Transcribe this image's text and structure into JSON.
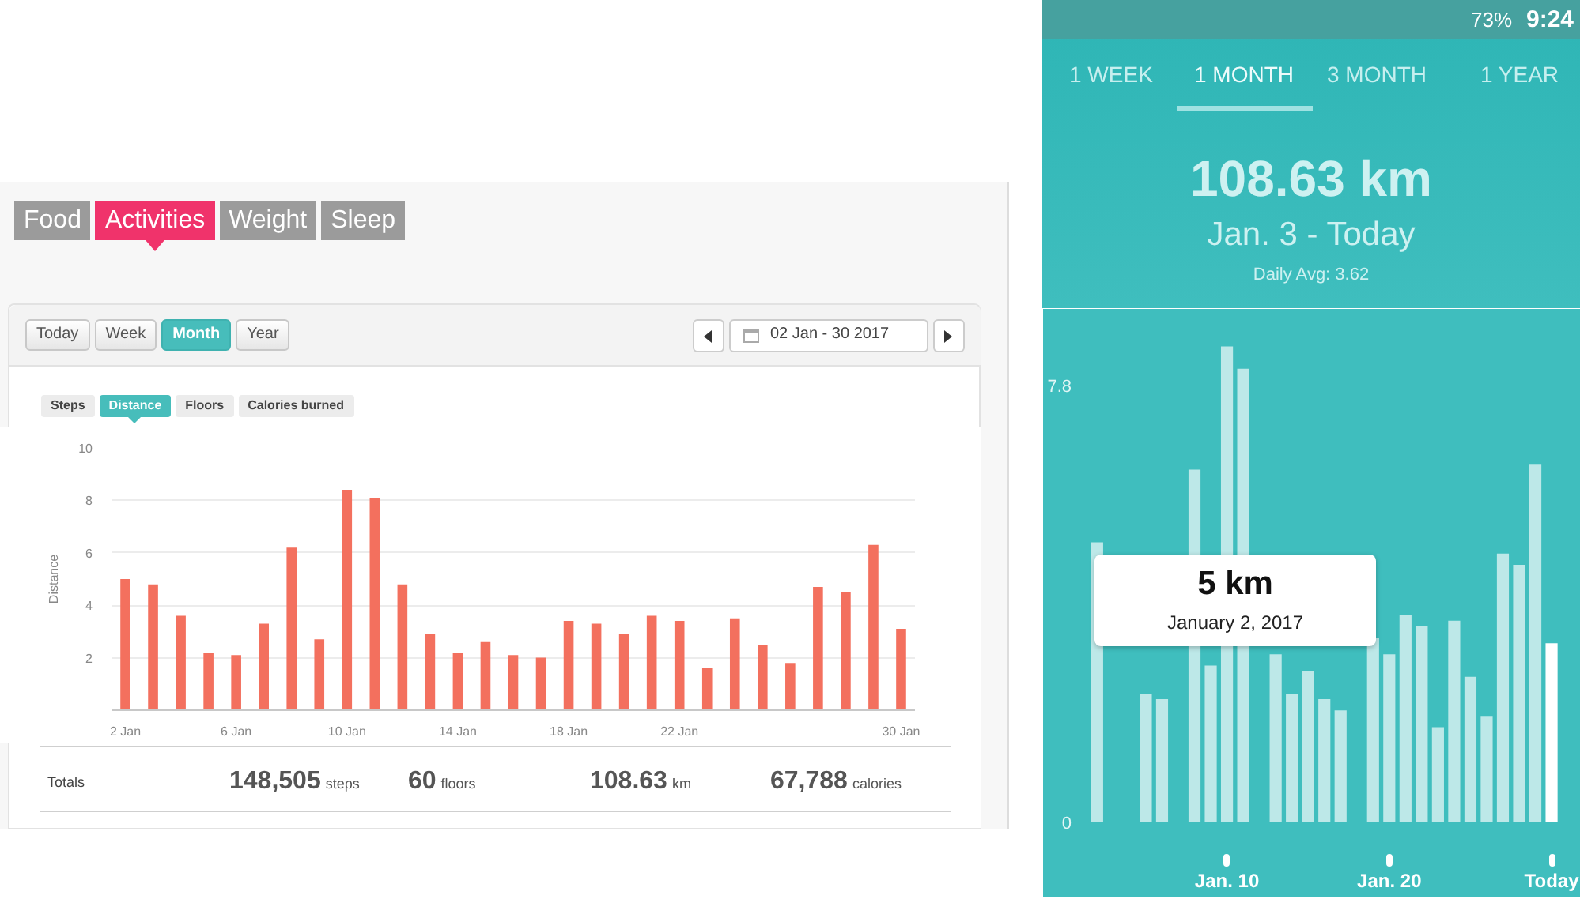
{
  "chart_data": [
    {
      "type": "bar",
      "categories": [
        "2 Jan",
        null,
        null,
        null,
        "6 Jan",
        null,
        null,
        null,
        "10 Jan",
        null,
        null,
        null,
        "14 Jan",
        null,
        null,
        null,
        "18 Jan",
        null,
        null,
        null,
        "22 Jan",
        null,
        null,
        null,
        null,
        null,
        null,
        null,
        "30 Jan"
      ],
      "values": [
        5.0,
        4.8,
        3.6,
        2.2,
        2.1,
        3.3,
        6.2,
        2.7,
        8.4,
        8.1,
        4.8,
        2.9,
        2.2,
        2.6,
        2.1,
        2.0,
        3.4,
        3.3,
        2.9,
        3.6,
        3.4,
        1.6,
        3.5,
        2.5,
        1.8,
        4.7,
        4.5,
        6.3,
        3.1
      ],
      "color": "#f3705e",
      "ylabel": "Distance",
      "ylim": [
        0,
        10
      ],
      "yticks": [
        2,
        4,
        6,
        8,
        10
      ],
      "grid": "y",
      "annotations": [
        "Food",
        "Activities",
        "Weight",
        "Sleep",
        "Today",
        "Week",
        "Month",
        "Year",
        "02 Jan - 30 2017",
        "Steps",
        "Distance",
        "Floors",
        "Calories burned",
        "Totals",
        "148,505",
        "steps",
        "60",
        "floors",
        "108.63",
        "km",
        "67,788",
        "calories"
      ]
    },
    {
      "type": "bar",
      "categories": [
        null,
        null,
        null,
        null,
        null,
        null,
        null,
        null,
        "Jan. 10",
        null,
        null,
        null,
        null,
        null,
        null,
        null,
        null,
        null,
        "Jan. 20",
        null,
        null,
        null,
        null,
        null,
        null,
        null,
        null,
        null,
        "Today"
      ],
      "values": [
        5,
        null,
        null,
        2.3,
        2.2,
        null,
        6.3,
        2.8,
        8.5,
        8.1,
        null,
        3.0,
        2.3,
        2.7,
        2.2,
        2.0,
        null,
        3.3,
        3.0,
        3.7,
        3.5,
        1.7,
        3.6,
        2.6,
        1.9,
        4.8,
        4.6,
        6.4,
        3.2
      ],
      "colors": [
        "#bde8e8",
        "#bde8e8",
        "#bde8e8",
        "#bde8e8",
        "#bde8e8",
        "#bde8e8",
        "#bde8e8",
        "#bde8e8",
        "#bde8e8",
        "#bde8e8",
        "#bde8e8",
        "#bde8e8",
        "#bde8e8",
        "#bde8e8",
        "#bde8e8",
        "#bde8e8",
        "#bde8e8",
        "#bde8e8",
        "#bde8e8",
        "#bde8e8",
        "#bde8e8",
        "#bde8e8",
        "#bde8e8",
        "#bde8e8",
        "#bde8e8",
        "#bde8e8",
        "#bde8e8",
        "#bde8e8",
        "#ffffff"
      ],
      "ylim": [
        0,
        9
      ],
      "yticks": [
        0,
        7.8
      ],
      "annotations": [
        "73%",
        "9:24",
        "1 WEEK",
        "1 MONTH",
        "3 MONTH",
        "1 YEAR",
        "108.63 km",
        "Jan. 3 - Today",
        "Daily Avg: 3.62",
        {
          "text": "5 km",
          "y": 5
        },
        "January 2, 2017"
      ]
    }
  ]
}
